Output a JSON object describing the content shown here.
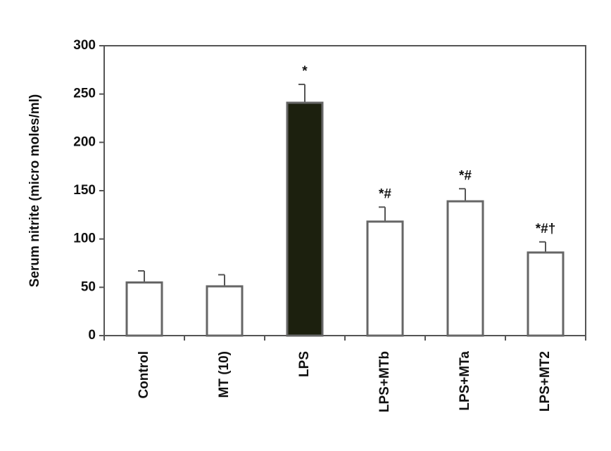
{
  "chart_data": {
    "type": "bar",
    "y_label": "Serum nitrite (micro moles/ml)",
    "categories": [
      "Control",
      "MT (10)",
      "LPS",
      "LPS+MTb",
      "LPS+MTa",
      "LPS+MT2"
    ],
    "values": [
      55,
      51,
      241,
      118,
      139,
      86
    ],
    "errors": [
      12,
      12,
      19,
      15,
      13,
      11
    ],
    "colors": [
      "#ffffff",
      "#ffffff",
      "#1c200e",
      "#ffffff",
      "#ffffff",
      "#ffffff"
    ],
    "annotations": [
      null,
      null,
      "*",
      "*#",
      "*#",
      "*#†"
    ],
    "ylim": [
      0,
      300
    ],
    "yticks": [
      0,
      50,
      100,
      150,
      200,
      250,
      300
    ]
  }
}
